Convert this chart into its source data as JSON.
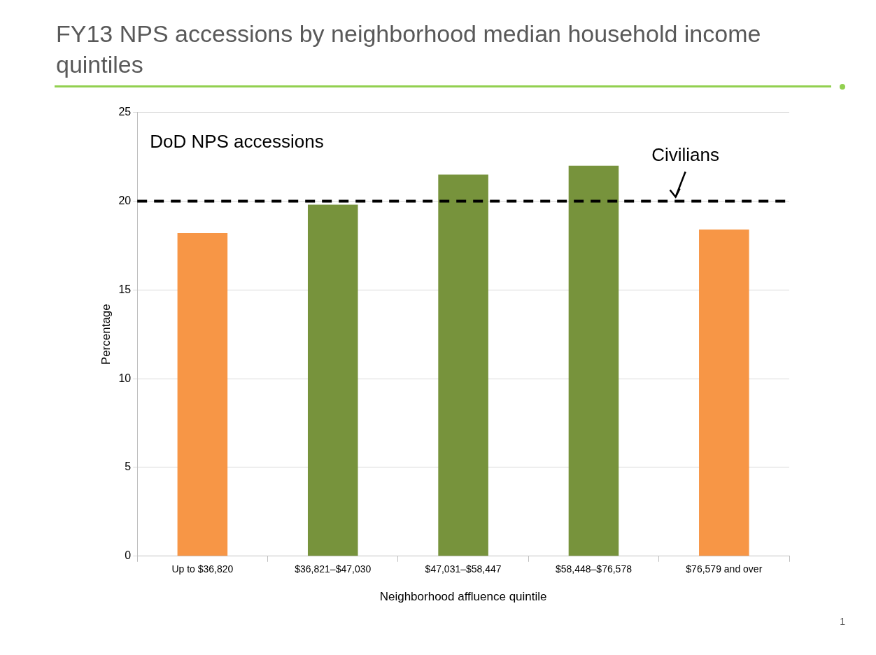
{
  "chart_data": {
    "type": "bar",
    "title": "FY13 NPS accessions by neighborhood median household income quintiles",
    "xlabel": "Neighborhood affluence quintile",
    "ylabel": "Percentage",
    "categories": [
      "Up to $36,820",
      "$36,821–$47,030",
      "$47,031–$58,447",
      "$58,448–$76,578",
      "$76,579 and over"
    ],
    "values": [
      18.2,
      19.8,
      21.5,
      22.0,
      18.4
    ],
    "colors": [
      "#f79646",
      "#77933c",
      "#77933c",
      "#77933c",
      "#f79646"
    ],
    "ylim": [
      0,
      25
    ],
    "yticks": [
      0,
      5,
      10,
      15,
      20,
      25
    ],
    "grid": "y",
    "legend": false,
    "ref_lines": [
      {
        "axis": "y",
        "value": 20,
        "label": "Civilians",
        "color": "#000000",
        "line_style": "dashed"
      }
    ],
    "annotations": [
      "DoD NPS accessions",
      "1"
    ]
  }
}
